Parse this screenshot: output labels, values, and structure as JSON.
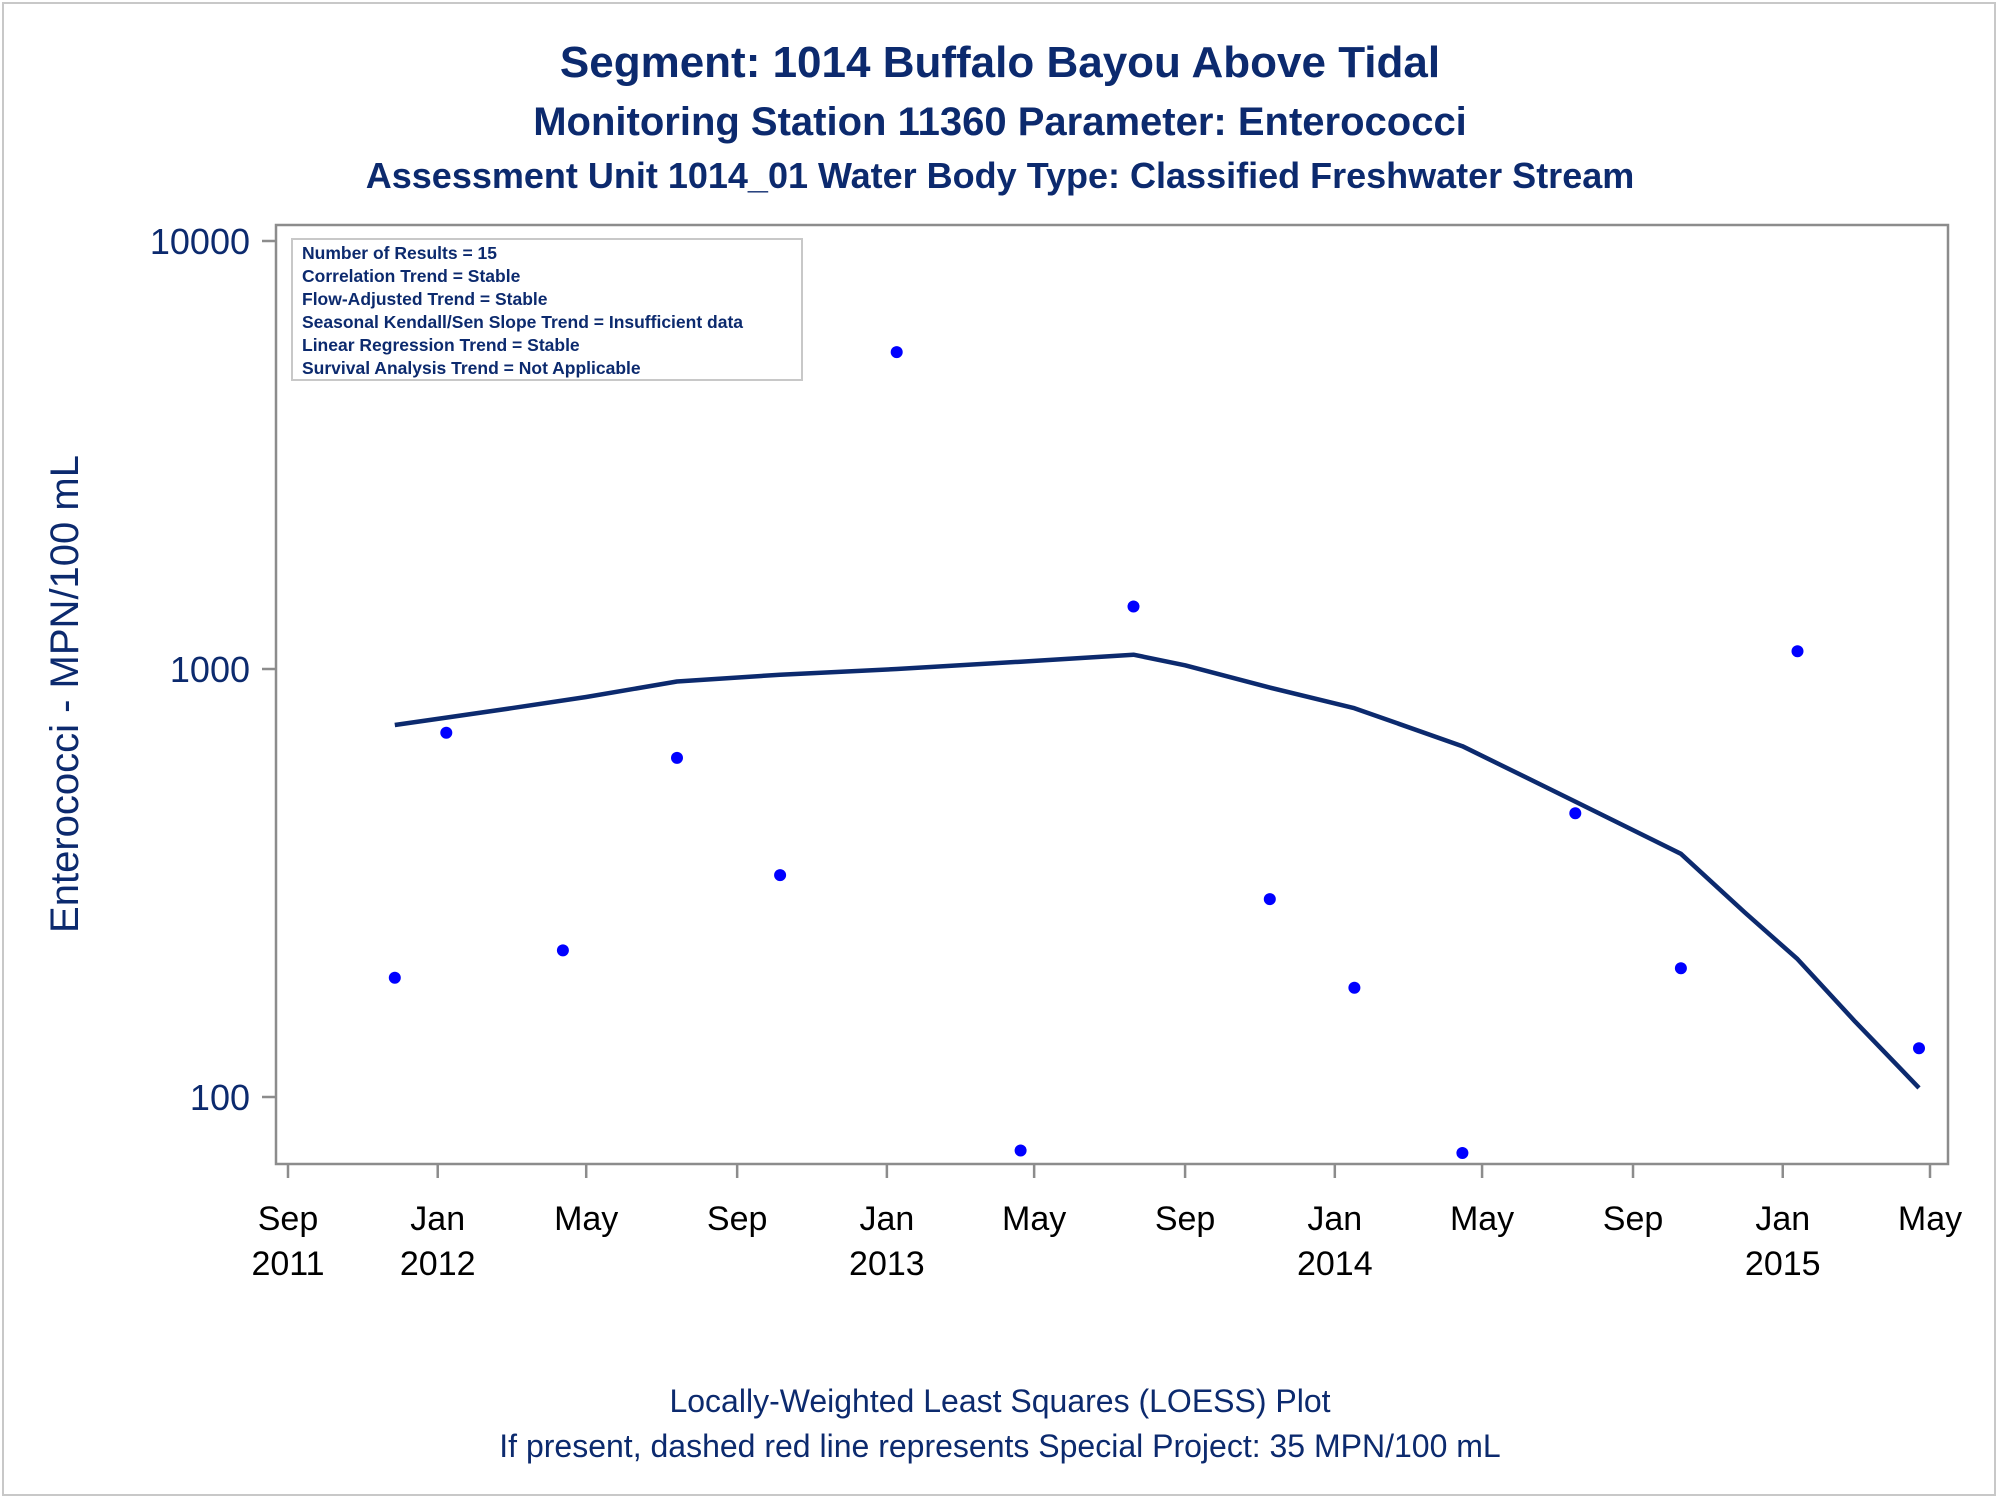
{
  "titles": {
    "line1": "Segment: 1014  Buffalo Bayou Above Tidal",
    "line2": "Monitoring Station 11360 Parameter: Enterococci",
    "line3": "Assessment Unit 1014_01   Water Body Type: Classified Freshwater Stream"
  },
  "footnotes": {
    "line1": "Locally-Weighted Least Squares (LOESS) Plot",
    "line2": "If present, dashed red line represents Special Project: 35 MPN/100 mL"
  },
  "stats_box": [
    "Number of Results = 15",
    "Correlation Trend = Stable",
    "Flow-Adjusted Trend = Stable",
    "Seasonal Kendall/Sen Slope Trend = Insufficient data",
    "Linear Regression Trend = Stable",
    "Survival Analysis Trend = Not Applicable"
  ],
  "colors": {
    "text": "#0c2a6e",
    "points": "#0000ff",
    "loess_line": "#0c2a6e",
    "frame": "#8c8c8c"
  },
  "chart_data": {
    "type": "scatter",
    "title": "Segment: 1014  Buffalo Bayou Above Tidal",
    "ylabel": "Enterococci - MPN/100 mL",
    "xlabel": "",
    "yscale": "log",
    "ylim": [
      70,
      10000
    ],
    "xlim": [
      "2011-08-22",
      "2015-05-11"
    ],
    "y_ticks": [
      {
        "value": 100,
        "label": "100"
      },
      {
        "value": 1000,
        "label": "1000"
      },
      {
        "value": 10000,
        "label": "10000"
      }
    ],
    "x_ticks": [
      {
        "date": "2011-09-01",
        "line1": "Sep",
        "line2": "2011"
      },
      {
        "date": "2012-01-01",
        "line1": "Jan",
        "line2": "2012"
      },
      {
        "date": "2012-05-01",
        "line1": "May",
        "line2": ""
      },
      {
        "date": "2012-09-01",
        "line1": "Sep",
        "line2": ""
      },
      {
        "date": "2013-01-01",
        "line1": "Jan",
        "line2": "2013"
      },
      {
        "date": "2013-05-01",
        "line1": "May",
        "line2": ""
      },
      {
        "date": "2013-09-01",
        "line1": "Sep",
        "line2": ""
      },
      {
        "date": "2014-01-01",
        "line1": "Jan",
        "line2": "2014"
      },
      {
        "date": "2014-05-01",
        "line1": "May",
        "line2": ""
      },
      {
        "date": "2014-09-01",
        "line1": "Sep",
        "line2": ""
      },
      {
        "date": "2015-01-01",
        "line1": "Jan",
        "line2": "2015"
      },
      {
        "date": "2015-05-01",
        "line1": "May",
        "line2": ""
      }
    ],
    "series": [
      {
        "type": "scatter",
        "points": [
          {
            "x": "2011-11-27",
            "y": 190
          },
          {
            "x": "2012-01-08",
            "y": 710
          },
          {
            "x": "2012-04-12",
            "y": 220
          },
          {
            "x": "2012-07-14",
            "y": 620
          },
          {
            "x": "2012-10-06",
            "y": 330
          },
          {
            "x": "2013-01-09",
            "y": 5500
          },
          {
            "x": "2013-04-20",
            "y": 75
          },
          {
            "x": "2013-07-21",
            "y": 1400
          },
          {
            "x": "2013-11-09",
            "y": 290
          },
          {
            "x": "2014-01-17",
            "y": 180
          },
          {
            "x": "2014-04-15",
            "y": 74
          },
          {
            "x": "2014-07-16",
            "y": 460
          },
          {
            "x": "2014-10-10",
            "y": 200
          },
          {
            "x": "2015-01-13",
            "y": 1100
          },
          {
            "x": "2015-04-22",
            "y": 130
          }
        ]
      },
      {
        "type": "line",
        "points": [
          {
            "x": "2011-11-27",
            "y": 740
          },
          {
            "x": "2012-01-08",
            "y": 770
          },
          {
            "x": "2012-03-01",
            "y": 810
          },
          {
            "x": "2012-05-01",
            "y": 860
          },
          {
            "x": "2012-07-14",
            "y": 935
          },
          {
            "x": "2012-10-06",
            "y": 970
          },
          {
            "x": "2013-01-09",
            "y": 1000
          },
          {
            "x": "2013-04-20",
            "y": 1040
          },
          {
            "x": "2013-07-21",
            "y": 1080
          },
          {
            "x": "2013-09-01",
            "y": 1020
          },
          {
            "x": "2013-11-09",
            "y": 905
          },
          {
            "x": "2014-01-17",
            "y": 810
          },
          {
            "x": "2014-04-15",
            "y": 660
          },
          {
            "x": "2014-07-16",
            "y": 490
          },
          {
            "x": "2014-10-10",
            "y": 370
          },
          {
            "x": "2014-12-01",
            "y": 270
          },
          {
            "x": "2015-01-13",
            "y": 210
          },
          {
            "x": "2015-03-01",
            "y": 150
          },
          {
            "x": "2015-04-22",
            "y": 105
          }
        ]
      }
    ]
  }
}
